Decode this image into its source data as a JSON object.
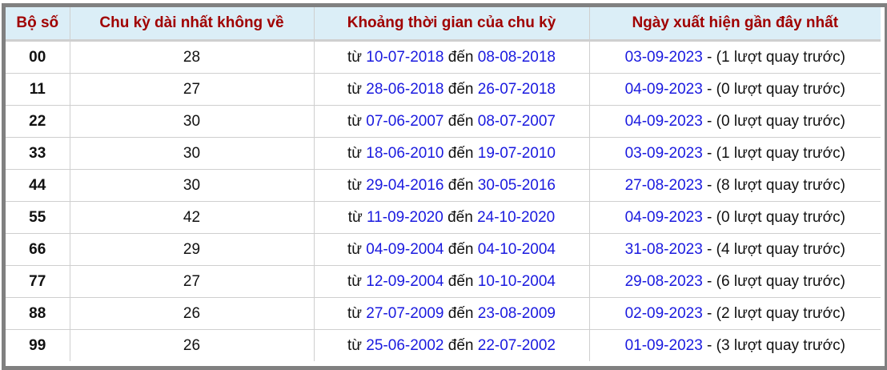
{
  "headers": [
    "Bộ số",
    "Chu kỳ dài nhất không về",
    "Khoảng thời gian của chu kỳ",
    "Ngày xuất hiện gần đây nhất"
  ],
  "labels": {
    "from": "từ",
    "to": "đến",
    "sep": " - ",
    "turns_suffix": " lượt quay trước)",
    "turns_prefix": "("
  },
  "colors": {
    "header_text": "#a00000",
    "header_bg": "#dbeef7",
    "date_link": "#1a1adf",
    "frame": "#808080"
  },
  "rows": [
    {
      "pair": "00",
      "cycle": "28",
      "from": "10-07-2018",
      "to": "08-08-2018",
      "last": "03-09-2023",
      "ago": "1"
    },
    {
      "pair": "11",
      "cycle": "27",
      "from": "28-06-2018",
      "to": "26-07-2018",
      "last": "04-09-2023",
      "ago": "0"
    },
    {
      "pair": "22",
      "cycle": "30",
      "from": "07-06-2007",
      "to": "08-07-2007",
      "last": "04-09-2023",
      "ago": "0"
    },
    {
      "pair": "33",
      "cycle": "30",
      "from": "18-06-2010",
      "to": "19-07-2010",
      "last": "03-09-2023",
      "ago": "1"
    },
    {
      "pair": "44",
      "cycle": "30",
      "from": "29-04-2016",
      "to": "30-05-2016",
      "last": "27-08-2023",
      "ago": "8"
    },
    {
      "pair": "55",
      "cycle": "42",
      "from": "11-09-2020",
      "to": "24-10-2020",
      "last": "04-09-2023",
      "ago": "0"
    },
    {
      "pair": "66",
      "cycle": "29",
      "from": "04-09-2004",
      "to": "04-10-2004",
      "last": "31-08-2023",
      "ago": "4"
    },
    {
      "pair": "77",
      "cycle": "27",
      "from": "12-09-2004",
      "to": "10-10-2004",
      "last": "29-08-2023",
      "ago": "6"
    },
    {
      "pair": "88",
      "cycle": "26",
      "from": "27-07-2009",
      "to": "23-08-2009",
      "last": "02-09-2023",
      "ago": "2"
    },
    {
      "pair": "99",
      "cycle": "26",
      "from": "25-06-2002",
      "to": "22-07-2002",
      "last": "01-09-2023",
      "ago": "3"
    }
  ]
}
